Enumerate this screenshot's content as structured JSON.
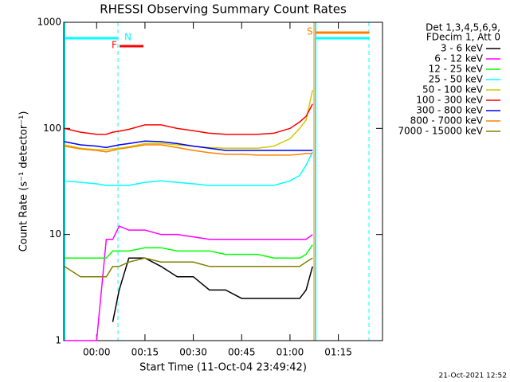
{
  "chart_data": {
    "type": "line",
    "title": "RHESSI Observing Summary Count Rates",
    "x_label": "Start Time (11-Oct-04 23:49:42)",
    "y_label": "Count Rate (s⁻¹ detector⁻¹)",
    "log_scale": true,
    "legend_header": [
      "Det 1,3,4,5,6,9,",
      "FDecim 1, Att 0"
    ],
    "flags": [
      "N",
      "F",
      "S"
    ],
    "footer": "21-Oct-2021 12:52",
    "xlim": [
      -10.2,
      88.7
    ],
    "ylim": [
      1,
      1000
    ],
    "xticks": [
      {
        "value": 0,
        "label": "00:00"
      },
      {
        "value": 15,
        "label": "00:15"
      },
      {
        "value": 30,
        "label": "00:30"
      },
      {
        "value": 45,
        "label": "00:45"
      },
      {
        "value": 60,
        "label": "01:00"
      },
      {
        "value": 75,
        "label": "01:15"
      }
    ],
    "yticks": [
      1,
      10,
      100,
      1000
    ],
    "x": [
      -10,
      -5,
      0,
      3,
      5,
      7,
      10,
      15,
      20,
      25,
      30,
      35,
      40,
      45,
      50,
      55,
      60,
      63,
      65,
      67
    ],
    "series": [
      {
        "name": "3 - 6 keV",
        "color": "#000000",
        "values": [
          null,
          null,
          null,
          null,
          1.5,
          3,
          6,
          6,
          5,
          4,
          4,
          3,
          3,
          2.5,
          2.5,
          2.5,
          2.5,
          2.5,
          3,
          5
        ]
      },
      {
        "name": "6 - 12 keV",
        "color": "#ff00ff",
        "values": [
          1,
          1,
          1,
          9,
          9,
          12,
          11,
          11,
          10,
          10,
          9.5,
          9,
          9,
          9,
          9,
          9,
          9,
          9,
          9,
          10
        ]
      },
      {
        "name": "12 - 25 keV",
        "color": "#00ff00",
        "values": [
          6,
          6,
          6,
          6,
          7,
          7,
          7,
          7.5,
          7.5,
          7,
          7,
          7,
          6.5,
          6.5,
          6.5,
          6,
          6,
          6,
          6.5,
          8
        ]
      },
      {
        "name": "25 - 50 keV",
        "color": "#00ffff",
        "values": [
          32,
          31,
          30,
          29,
          29,
          29,
          29,
          31,
          32,
          31,
          30,
          29,
          29,
          29,
          29,
          29,
          32,
          36,
          45,
          60
        ]
      },
      {
        "name": "50 - 100 keV",
        "color": "#cccc00",
        "values": [
          70,
          65,
          63,
          63,
          64,
          65,
          67,
          72,
          72,
          70,
          68,
          66,
          65,
          65,
          65,
          68,
          80,
          100,
          120,
          230
        ]
      },
      {
        "name": "100 - 300 keV",
        "color": "#ff0000",
        "values": [
          100,
          92,
          88,
          88,
          92,
          94,
          98,
          108,
          108,
          100,
          95,
          90,
          88,
          88,
          88,
          90,
          100,
          115,
          130,
          170
        ]
      },
      {
        "name": "300 - 800 keV",
        "color": "#0000ff",
        "values": [
          75,
          70,
          68,
          66,
          68,
          70,
          72,
          76,
          75,
          72,
          68,
          65,
          62,
          62,
          62,
          62,
          62,
          62,
          62,
          62
        ]
      },
      {
        "name": "800 - 7000 keV",
        "color": "#ff8000",
        "values": [
          68,
          64,
          62,
          60,
          62,
          64,
          66,
          70,
          70,
          66,
          62,
          59,
          57,
          57,
          56,
          56,
          56,
          57,
          58,
          58
        ]
      },
      {
        "name": "7000 - 15000 keV",
        "color": "#808000",
        "values": [
          5,
          4,
          4,
          4,
          5,
          5,
          5.5,
          6,
          5.5,
          5.5,
          5.5,
          5,
          5,
          5,
          5,
          5,
          5,
          5,
          5.5,
          6
        ]
      }
    ]
  }
}
